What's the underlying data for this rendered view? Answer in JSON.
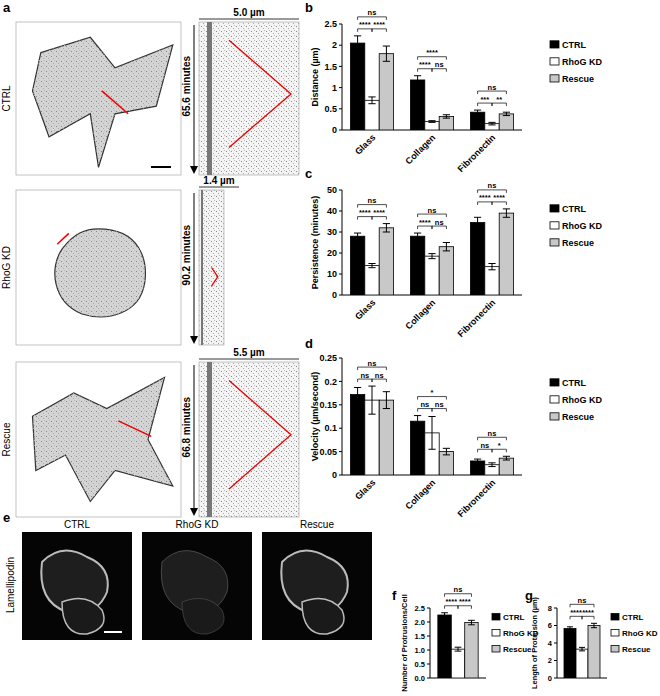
{
  "chart_data": [
    {
      "panel": "b",
      "type": "bar",
      "y_label": "Distance (µm)",
      "categories": [
        "Glass",
        "Collagen",
        "Fibronectin"
      ],
      "series": [
        {
          "name": "CTRL",
          "color": "#000000",
          "values": [
            2.05,
            1.18,
            0.42
          ],
          "errors": [
            0.17,
            0.1,
            0.05
          ]
        },
        {
          "name": "RhoG KD",
          "color": "#ffffff",
          "values": [
            0.7,
            0.2,
            0.15
          ],
          "errors": [
            0.08,
            0.02,
            0.03
          ]
        },
        {
          "name": "Rescue",
          "color": "#c8c8c8",
          "values": [
            1.8,
            0.32,
            0.38
          ],
          "errors": [
            0.18,
            0.04,
            0.04
          ]
        }
      ],
      "ylim": [
        0,
        2.5
      ],
      "yticks": [
        0,
        0.5,
        1,
        1.5,
        2,
        2.5
      ],
      "legend": "right",
      "annotations": [
        {
          "text": "ns",
          "category": 0,
          "from": 0,
          "to": 2
        },
        {
          "text": "****",
          "category": 0,
          "from": 0,
          "to": 1
        },
        {
          "text": "****",
          "category": 0,
          "from": 1,
          "to": 2
        },
        {
          "text": "****",
          "category": 1,
          "from": 0,
          "to": 2
        },
        {
          "text": "****",
          "category": 1,
          "from": 0,
          "to": 1
        },
        {
          "text": "ns",
          "category": 1,
          "from": 1,
          "to": 2
        },
        {
          "text": "ns",
          "category": 2,
          "from": 0,
          "to": 2
        },
        {
          "text": "***",
          "category": 2,
          "from": 0,
          "to": 1
        },
        {
          "text": "**",
          "category": 2,
          "from": 1,
          "to": 2
        }
      ]
    },
    {
      "panel": "c",
      "type": "bar",
      "y_label": "Persistence (minutes)",
      "categories": [
        "Glass",
        "Collagen",
        "Fibronectin"
      ],
      "series": [
        {
          "name": "CTRL",
          "color": "#000000",
          "values": [
            28,
            28,
            34.5
          ],
          "errors": [
            1.5,
            1.5,
            2.5
          ]
        },
        {
          "name": "RhoG KD",
          "color": "#ffffff",
          "values": [
            14,
            18.5,
            13.5
          ],
          "errors": [
            1,
            1.2,
            1.5
          ]
        },
        {
          "name": "Rescue",
          "color": "#c8c8c8",
          "values": [
            32,
            23,
            39
          ],
          "errors": [
            2,
            2,
            2
          ]
        }
      ],
      "ylim": [
        0,
        50
      ],
      "yticks": [
        0,
        10,
        20,
        30,
        40,
        50
      ],
      "legend": "right",
      "annotations": [
        {
          "text": "ns",
          "category": 0,
          "from": 0,
          "to": 2
        },
        {
          "text": "****",
          "category": 0,
          "from": 0,
          "to": 1
        },
        {
          "text": "****",
          "category": 0,
          "from": 1,
          "to": 2
        },
        {
          "text": "ns",
          "category": 1,
          "from": 0,
          "to": 2
        },
        {
          "text": "****",
          "category": 1,
          "from": 0,
          "to": 1
        },
        {
          "text": "ns",
          "category": 1,
          "from": 1,
          "to": 2
        },
        {
          "text": "ns",
          "category": 2,
          "from": 0,
          "to": 2
        },
        {
          "text": "****",
          "category": 2,
          "from": 0,
          "to": 1
        },
        {
          "text": "****",
          "category": 2,
          "from": 1,
          "to": 2
        }
      ]
    },
    {
      "panel": "d",
      "type": "bar",
      "y_label": "Velocity (µm/second)",
      "categories": [
        "Glass",
        "Collagen",
        "Fibronectin"
      ],
      "series": [
        {
          "name": "CTRL",
          "color": "#000000",
          "values": [
            0.172,
            0.115,
            0.03
          ],
          "errors": [
            0.015,
            0.012,
            0.004
          ]
        },
        {
          "name": "RhoG KD",
          "color": "#ffffff",
          "values": [
            0.16,
            0.09,
            0.022
          ],
          "errors": [
            0.03,
            0.035,
            0.004
          ]
        },
        {
          "name": "Rescue",
          "color": "#c8c8c8",
          "values": [
            0.16,
            0.05,
            0.036
          ],
          "errors": [
            0.018,
            0.007,
            0.004
          ]
        }
      ],
      "ylim": [
        0,
        0.25
      ],
      "yticks": [
        0,
        0.05,
        0.1,
        0.15,
        0.2,
        0.25
      ],
      "legend": "right",
      "annotations": [
        {
          "text": "ns",
          "category": 0,
          "from": 0,
          "to": 2
        },
        {
          "text": "ns",
          "category": 0,
          "from": 0,
          "to": 1
        },
        {
          "text": "ns",
          "category": 0,
          "from": 1,
          "to": 2
        },
        {
          "text": "*",
          "category": 1,
          "from": 0,
          "to": 2
        },
        {
          "text": "ns",
          "category": 1,
          "from": 0,
          "to": 1
        },
        {
          "text": "ns",
          "category": 1,
          "from": 1,
          "to": 2
        },
        {
          "text": "ns",
          "category": 2,
          "from": 0,
          "to": 2
        },
        {
          "text": "ns",
          "category": 2,
          "from": 0,
          "to": 1
        },
        {
          "text": "*",
          "category": 2,
          "from": 1,
          "to": 2
        }
      ]
    },
    {
      "panel": "f",
      "type": "bar",
      "y_label": "Number of Protrusions/Cell",
      "categories": [
        null
      ],
      "series": [
        {
          "name": "CTRL",
          "color": "#000000",
          "values": [
            2.25
          ],
          "errors": [
            0.08
          ]
        },
        {
          "name": "RhoG KD",
          "color": "#ffffff",
          "values": [
            1.03
          ],
          "errors": [
            0.07
          ]
        },
        {
          "name": "Rescue",
          "color": "#c8c8c8",
          "values": [
            1.98
          ],
          "errors": [
            0.08
          ]
        }
      ],
      "ylim": [
        0,
        2.5
      ],
      "yticks": [
        {
          "value": 0,
          "label": "0.0"
        },
        {
          "value": 0.5,
          "label": "0.5"
        },
        {
          "value": 1,
          "label": "1.0"
        },
        {
          "value": 1.5,
          "label": "1.5"
        },
        {
          "value": 2,
          "label": "2.0"
        },
        {
          "value": 2.5,
          "label": "2.5"
        }
      ],
      "legend": "right",
      "annotations": [
        {
          "text": "ns",
          "category": 0,
          "from": 0,
          "to": 2
        },
        {
          "text": "****",
          "category": 0,
          "from": 0,
          "to": 1
        },
        {
          "text": "****",
          "category": 0,
          "from": 1,
          "to": 2
        }
      ]
    },
    {
      "panel": "g",
      "type": "bar",
      "y_label": "Length of Protrusion (µm)",
      "categories": [
        null
      ],
      "series": [
        {
          "name": "CTRL",
          "color": "#000000",
          "values": [
            5.65
          ],
          "errors": [
            0.2
          ]
        },
        {
          "name": "RhoG KD",
          "color": "#ffffff",
          "values": [
            3.3
          ],
          "errors": [
            0.2
          ]
        },
        {
          "name": "Rescue",
          "color": "#c8c8c8",
          "values": [
            6
          ],
          "errors": [
            0.25
          ]
        }
      ],
      "ylim": [
        0,
        8
      ],
      "yticks": [
        0,
        2,
        4,
        6,
        8
      ],
      "legend": "right",
      "annotations": [
        {
          "text": "ns",
          "category": 0,
          "from": 0,
          "to": 2
        },
        {
          "text": "****",
          "category": 0,
          "from": 0,
          "to": 1
        },
        {
          "text": "****",
          "category": 0,
          "from": 1,
          "to": 2
        }
      ]
    }
  ],
  "images": {
    "a": {
      "panel": "a",
      "rows": [
        {
          "label": "CTRL",
          "width": "5.0 µm",
          "time": "65.6 minutes"
        },
        {
          "label": "RhoG KD",
          "width": "1.4 µm",
          "time": "90.2 minutes"
        },
        {
          "label": "Rescue",
          "width": "5.5 µm",
          "time": "66.8 minutes"
        }
      ]
    },
    "e": {
      "panel": "e",
      "stain": "Lamellipodin",
      "labels": [
        "CTRL",
        "RhoG KD",
        "Rescue"
      ]
    }
  }
}
